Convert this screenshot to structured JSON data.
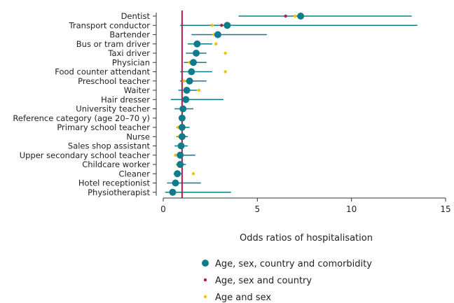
{
  "chart_data": {
    "type": "scatter",
    "subtype": "forest-plot",
    "xlabel": "Odds ratios of hospitalisation",
    "xlim": [
      0,
      15
    ],
    "xticks": [
      0,
      5,
      10,
      15
    ],
    "reference_line_x": 1,
    "categories": [
      "Dentist",
      "Transport conductor",
      "Bartender",
      "Bus or tram driver",
      "Taxi driver",
      "Physician",
      "Food counter attendant",
      "Preschool teacher",
      "Waiter",
      "Hair dresser",
      "University teacher",
      "Reference category (age 20–70 y)",
      "Primary school teacher",
      "Nurse",
      "Sales shop assistant",
      "Upper secondary school teacher",
      "Childcare worker",
      "Cleaner",
      "Hotel receptionist",
      "Physiotherapist"
    ],
    "series": [
      {
        "name": "Age, sex, country and comorbidity",
        "color": "#0e7c8a",
        "marker": "large-circle",
        "values": [
          7.3,
          3.4,
          2.9,
          1.8,
          1.75,
          1.6,
          1.5,
          1.4,
          1.25,
          1.2,
          1.05,
          1.0,
          1.0,
          1.0,
          0.95,
          0.9,
          0.9,
          0.75,
          0.65,
          0.5
        ],
        "ci_low": [
          4.0,
          0.9,
          1.5,
          1.3,
          1.2,
          1.1,
          0.9,
          0.9,
          0.8,
          0.4,
          0.6,
          1.0,
          0.7,
          0.7,
          0.6,
          0.6,
          0.7,
          0.55,
          0.2,
          0.1
        ],
        "ci_high": [
          13.2,
          13.5,
          5.5,
          2.6,
          2.3,
          2.3,
          2.6,
          2.3,
          1.8,
          3.2,
          1.6,
          1.0,
          1.4,
          1.3,
          1.3,
          1.7,
          1.2,
          1.0,
          2.0,
          3.6
        ]
      },
      {
        "name": "Age, sex and country",
        "color": "#b5174b",
        "marker": "small-dot",
        "values": [
          6.5,
          3.1,
          2.85,
          1.8,
          1.7,
          1.55,
          1.5,
          1.4,
          1.25,
          1.15,
          1.0,
          1.0,
          0.95,
          1.0,
          0.95,
          0.9,
          0.9,
          0.75,
          0.6,
          0.5
        ]
      },
      {
        "name": "Age and sex",
        "color": "#f2c200",
        "marker": "small-dot",
        "values": [
          7.0,
          2.6,
          2.7,
          2.8,
          3.3,
          1.4,
          3.3,
          1.1,
          1.9,
          1.1,
          0.95,
          1.0,
          0.8,
          0.85,
          0.85,
          0.65,
          0.75,
          1.6,
          0.7,
          0.4
        ]
      }
    ],
    "legend_position": "bottom"
  }
}
